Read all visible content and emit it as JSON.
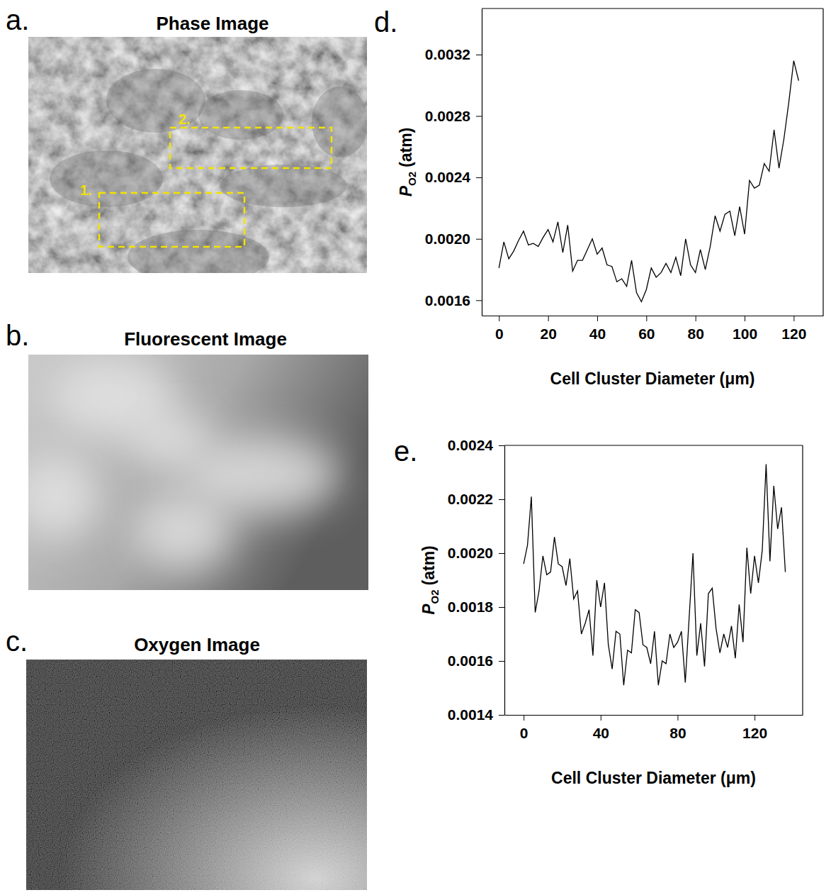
{
  "images": [
    {
      "panel_label": "a.",
      "title": "Phase Image",
      "regions": [
        "1.",
        "2."
      ]
    },
    {
      "panel_label": "b.",
      "title": "Fluorescent Image"
    },
    {
      "panel_label": "c.",
      "title": "Oxygen Image"
    }
  ],
  "chart_data": [
    {
      "type": "line",
      "panel_label": "d.",
      "x_label": "Cell Cluster Diameter (μm)",
      "y_label": {
        "text": "P",
        "sub": "O2",
        "after": "(atm)"
      },
      "color": "#000000",
      "x": [
        0,
        2,
        4,
        6,
        8,
        10,
        12,
        14,
        16,
        18,
        20,
        22,
        24,
        26,
        28,
        30,
        32,
        34,
        36,
        38,
        40,
        42,
        44,
        46,
        48,
        50,
        52,
        54,
        56,
        58,
        60,
        62,
        64,
        66,
        68,
        70,
        72,
        74,
        76,
        78,
        80,
        82,
        84,
        86,
        88,
        90,
        92,
        94,
        96,
        98,
        100,
        102,
        104,
        106,
        108,
        110,
        112,
        114,
        116,
        118,
        120,
        122
      ],
      "values": [
        0.00181,
        0.00198,
        0.00187,
        0.00192,
        0.00199,
        0.00205,
        0.00196,
        0.00197,
        0.00195,
        0.00201,
        0.00206,
        0.00198,
        0.00211,
        0.00191,
        0.00209,
        0.00179,
        0.00186,
        0.00186,
        0.00193,
        0.002,
        0.0019,
        0.00194,
        0.00183,
        0.00182,
        0.00172,
        0.00174,
        0.00169,
        0.00186,
        0.00165,
        0.00159,
        0.00167,
        0.00181,
        0.00175,
        0.00178,
        0.00184,
        0.00178,
        0.00188,
        0.00176,
        0.002,
        0.00183,
        0.00178,
        0.00193,
        0.0018,
        0.00195,
        0.00215,
        0.00205,
        0.00216,
        0.00218,
        0.00202,
        0.00221,
        0.00203,
        0.00238,
        0.00233,
        0.00235,
        0.00249,
        0.00244,
        0.00271,
        0.00246,
        0.00265,
        0.00289,
        0.00316,
        0.00303
      ],
      "xlim": [
        -7,
        132
      ],
      "xticks": [
        0,
        20,
        40,
        60,
        80,
        100,
        120
      ],
      "ylim": [
        0.0015,
        0.0035
      ],
      "yticks": [
        0.0016,
        {
          "value": 0.002,
          "label": "0.0020"
        },
        0.0024,
        0.0028,
        0.0032
      ]
    },
    {
      "type": "line",
      "panel_label": "e.",
      "x_label": "Cell Cluster Diameter (μm)",
      "y_label": {
        "text": "P",
        "sub": "O2",
        "after": "(atm)"
      },
      "color": "#000000",
      "x": [
        0,
        2,
        4,
        6,
        8,
        10,
        12,
        14,
        16,
        18,
        20,
        22,
        24,
        26,
        28,
        30,
        32,
        34,
        36,
        38,
        40,
        42,
        44,
        46,
        48,
        50,
        52,
        54,
        56,
        58,
        60,
        62,
        64,
        66,
        68,
        70,
        72,
        74,
        76,
        78,
        80,
        82,
        84,
        86,
        88,
        90,
        92,
        94,
        96,
        98,
        100,
        102,
        104,
        106,
        108,
        110,
        112,
        114,
        116,
        118,
        120,
        122,
        124,
        126,
        128,
        130,
        132,
        134,
        136
      ],
      "values": [
        0.00196,
        0.00203,
        0.00221,
        0.00178,
        0.00186,
        0.00199,
        0.00192,
        0.00193,
        0.00206,
        0.00196,
        0.00195,
        0.00188,
        0.00198,
        0.00183,
        0.00186,
        0.0017,
        0.00174,
        0.00179,
        0.00162,
        0.0019,
        0.0018,
        0.00189,
        0.00166,
        0.00157,
        0.00171,
        0.0017,
        0.00151,
        0.00164,
        0.00163,
        0.00179,
        0.00178,
        0.00166,
        0.00165,
        0.00159,
        0.00171,
        0.00151,
        0.0016,
        0.00159,
        0.0017,
        0.00165,
        0.00167,
        0.00171,
        0.00152,
        0.00176,
        0.002,
        0.00162,
        0.00174,
        0.00158,
        0.00185,
        0.00187,
        0.00172,
        0.00163,
        0.0017,
        0.00165,
        0.00173,
        0.00161,
        0.00181,
        0.00167,
        0.00202,
        0.00185,
        0.00199,
        0.00189,
        0.00201,
        0.00233,
        0.00197,
        0.00225,
        0.00209,
        0.00217,
        0.00193
      ],
      "xlim": [
        -10,
        145
      ],
      "xticks": [
        0,
        40,
        80,
        120
      ],
      "ylim": [
        0.0014,
        0.0024
      ],
      "yticks": [
        0.0014,
        0.0016,
        0.0018,
        {
          "value": 0.002,
          "label": "0.0020"
        },
        0.0022,
        0.0024
      ]
    }
  ]
}
